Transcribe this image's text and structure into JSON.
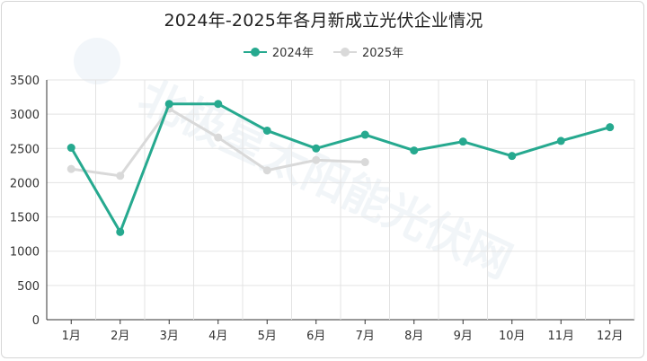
{
  "chart_data": {
    "type": "line",
    "title": "2024年-2025年各月新成立光伏企业情况",
    "categories": [
      "1月",
      "2月",
      "3月",
      "4月",
      "5月",
      "6月",
      "7月",
      "8月",
      "9月",
      "10月",
      "11月",
      "12月"
    ],
    "series": [
      {
        "name": "2024年",
        "color": "#26a98f",
        "values": [
          2510,
          1280,
          3150,
          3150,
          2760,
          2500,
          2700,
          2470,
          2600,
          2390,
          2610,
          2810
        ]
      },
      {
        "name": "2025年",
        "color": "#d9d9d9",
        "values": [
          2200,
          2100,
          3080,
          2660,
          2180,
          2330,
          2300,
          null,
          null,
          null,
          null,
          null
        ]
      }
    ],
    "y_ticks": [
      "0",
      "500",
      "1000",
      "1500",
      "2000",
      "2500",
      "3000",
      "3500"
    ],
    "ylim": [
      0,
      3500
    ],
    "xlabel": "",
    "ylabel": "",
    "grid": true,
    "legend_position": "top-center",
    "watermark": "北极星太阳能光伏网"
  }
}
